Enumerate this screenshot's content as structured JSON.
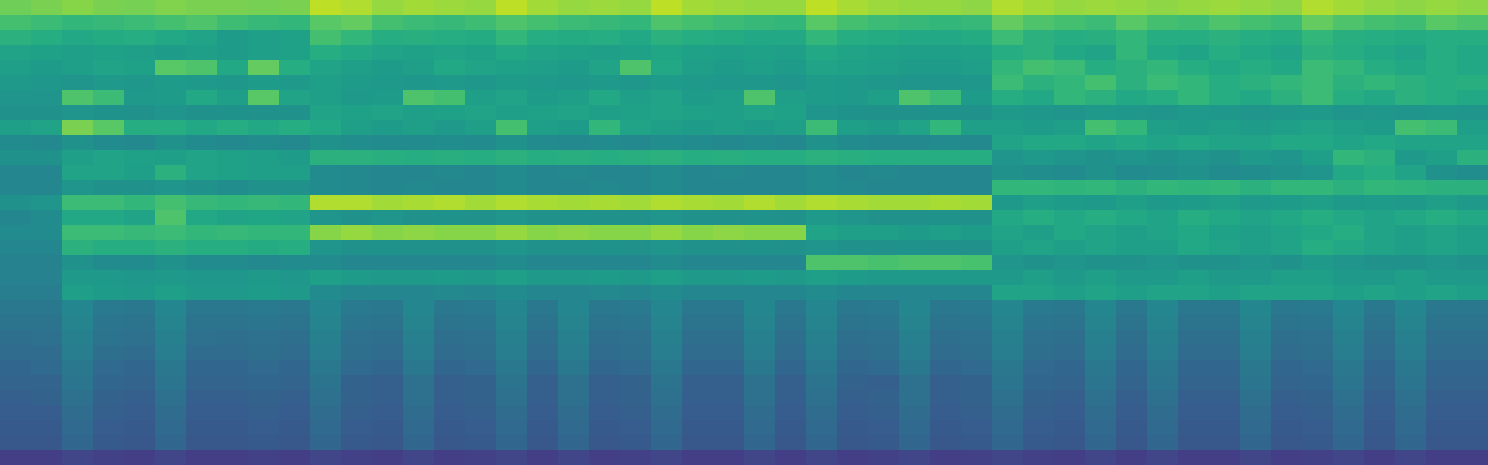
{
  "chart_data": {
    "type": "heatmap",
    "tick_labels": false,
    "zlim": [
      0,
      100
    ],
    "cells": [
      [
        78,
        80,
        82,
        80,
        79,
        81,
        80,
        80,
        79,
        80,
        90,
        88,
        84,
        86,
        85,
        84,
        90,
        86,
        84,
        85,
        84,
        90,
        86,
        85,
        84,
        84,
        90,
        87,
        85,
        84,
        84,
        83,
        88,
        86,
        84,
        85,
        84,
        83,
        84,
        85,
        84,
        83,
        88,
        86,
        84,
        83,
        84,
        83
      ],
      [
        70,
        68,
        66,
        67,
        68,
        70,
        72,
        69,
        67,
        66,
        74,
        76,
        70,
        68,
        67,
        69,
        72,
        70,
        68,
        67,
        66,
        72,
        70,
        68,
        67,
        66,
        74,
        70,
        68,
        67,
        66,
        67,
        76,
        72,
        70,
        68,
        74,
        70,
        69,
        72,
        70,
        68,
        76,
        72,
        70,
        69,
        74,
        72
      ],
      [
        64,
        62,
        60,
        61,
        62,
        60,
        58,
        55,
        56,
        57,
        70,
        66,
        62,
        63,
        62,
        61,
        66,
        62,
        61,
        62,
        60,
        64,
        62,
        61,
        60,
        60,
        66,
        62,
        61,
        60,
        60,
        61,
        68,
        64,
        62,
        63,
        66,
        62,
        62,
        64,
        62,
        61,
        66,
        63,
        62,
        61,
        62,
        62
      ],
      [
        58,
        57,
        56,
        57,
        56,
        55,
        56,
        55,
        56,
        57,
        62,
        60,
        58,
        57,
        58,
        57,
        60,
        58,
        57,
        56,
        57,
        59,
        57,
        56,
        57,
        56,
        60,
        58,
        57,
        56,
        56,
        57,
        62,
        64,
        60,
        58,
        66,
        60,
        58,
        62,
        60,
        58,
        64,
        62,
        60,
        58,
        62,
        60
      ],
      [
        56,
        55,
        56,
        58,
        57,
        74,
        72,
        60,
        76,
        62,
        58,
        56,
        55,
        56,
        60,
        58,
        57,
        56,
        55,
        58,
        72,
        60,
        56,
        55,
        56,
        55,
        58,
        57,
        56,
        55,
        55,
        56,
        66,
        70,
        68,
        62,
        64,
        66,
        62,
        60,
        62,
        60,
        68,
        66,
        62,
        60,
        62,
        60
      ],
      [
        54,
        53,
        52,
        54,
        53,
        55,
        54,
        53,
        55,
        54,
        56,
        55,
        54,
        53,
        54,
        53,
        55,
        54,
        53,
        54,
        53,
        55,
        54,
        53,
        53,
        52,
        55,
        54,
        53,
        52,
        52,
        53,
        68,
        64,
        66,
        70,
        64,
        68,
        66,
        62,
        64,
        66,
        68,
        64,
        66,
        64,
        62,
        63
      ],
      [
        52,
        52,
        72,
        68,
        54,
        55,
        60,
        56,
        74,
        58,
        56,
        54,
        55,
        72,
        70,
        56,
        58,
        55,
        56,
        60,
        56,
        58,
        55,
        56,
        72,
        56,
        55,
        54,
        56,
        72,
        68,
        55,
        62,
        60,
        66,
        64,
        60,
        62,
        66,
        62,
        60,
        64,
        68,
        62,
        60,
        64,
        62,
        60
      ],
      [
        50,
        50,
        52,
        51,
        50,
        52,
        50,
        51,
        50,
        50,
        58,
        57,
        58,
        56,
        57,
        58,
        56,
        57,
        58,
        56,
        57,
        58,
        57,
        56,
        58,
        57,
        52,
        51,
        50,
        50,
        51,
        50,
        54,
        53,
        52,
        54,
        53,
        52,
        54,
        53,
        52,
        53,
        54,
        52,
        53,
        52,
        53,
        52
      ],
      [
        56,
        58,
        80,
        74,
        62,
        62,
        60,
        62,
        60,
        62,
        60,
        56,
        55,
        56,
        54,
        56,
        70,
        56,
        55,
        66,
        58,
        56,
        55,
        56,
        55,
        56,
        68,
        56,
        55,
        58,
        66,
        56,
        56,
        55,
        56,
        70,
        66,
        56,
        55,
        56,
        55,
        56,
        58,
        56,
        55,
        70,
        68,
        56
      ],
      [
        48,
        47,
        50,
        48,
        47,
        50,
        48,
        47,
        48,
        47,
        50,
        49,
        48,
        48,
        49,
        48,
        50,
        48,
        47,
        48,
        47,
        49,
        48,
        47,
        48,
        47,
        50,
        48,
        47,
        47,
        48,
        47,
        58,
        60,
        60,
        58,
        60,
        58,
        60,
        58,
        58,
        60,
        60,
        58,
        60,
        58,
        58,
        58
      ],
      [
        50,
        50,
        56,
        58,
        57,
        56,
        58,
        57,
        56,
        55,
        64,
        64,
        63,
        62,
        63,
        62,
        64,
        62,
        63,
        62,
        63,
        64,
        62,
        63,
        62,
        62,
        64,
        63,
        62,
        62,
        62,
        62,
        52,
        54,
        52,
        50,
        52,
        50,
        52,
        50,
        54,
        52,
        56,
        66,
        64,
        54,
        56,
        64
      ],
      [
        46,
        46,
        58,
        58,
        56,
        64,
        58,
        57,
        56,
        56,
        48,
        47,
        46,
        46,
        47,
        46,
        48,
        46,
        47,
        46,
        46,
        48,
        46,
        47,
        46,
        46,
        48,
        46,
        47,
        46,
        46,
        46,
        50,
        49,
        48,
        50,
        48,
        49,
        50,
        48,
        49,
        50,
        52,
        60,
        62,
        58,
        50,
        49
      ],
      [
        46,
        46,
        52,
        50,
        50,
        52,
        50,
        49,
        50,
        50,
        48,
        47,
        46,
        47,
        46,
        46,
        48,
        46,
        46,
        47,
        46,
        48,
        46,
        46,
        46,
        46,
        48,
        47,
        46,
        46,
        46,
        46,
        66,
        66,
        65,
        66,
        64,
        66,
        65,
        66,
        64,
        66,
        66,
        64,
        66,
        65,
        64,
        64
      ],
      [
        50,
        52,
        68,
        68,
        66,
        70,
        67,
        66,
        67,
        66,
        88,
        88,
        86,
        87,
        88,
        86,
        88,
        87,
        86,
        87,
        86,
        88,
        87,
        86,
        88,
        86,
        88,
        87,
        86,
        86,
        87,
        86,
        54,
        56,
        55,
        54,
        56,
        54,
        55,
        56,
        54,
        55,
        56,
        54,
        55,
        54,
        56,
        54
      ],
      [
        46,
        48,
        60,
        60,
        58,
        72,
        60,
        58,
        59,
        58,
        52,
        50,
        52,
        50,
        51,
        50,
        52,
        50,
        51,
        50,
        50,
        52,
        50,
        50,
        51,
        50,
        54,
        52,
        50,
        50,
        51,
        50,
        60,
        62,
        60,
        62,
        60,
        58,
        62,
        60,
        58,
        60,
        62,
        60,
        58,
        60,
        62,
        60
      ],
      [
        48,
        48,
        68,
        68,
        67,
        68,
        66,
        67,
        66,
        66,
        82,
        84,
        82,
        83,
        82,
        82,
        84,
        82,
        83,
        82,
        82,
        84,
        82,
        83,
        82,
        82,
        58,
        56,
        56,
        55,
        56,
        55,
        58,
        56,
        60,
        58,
        56,
        58,
        60,
        57,
        56,
        58,
        60,
        62,
        58,
        56,
        58,
        56
      ],
      [
        46,
        46,
        64,
        62,
        62,
        64,
        62,
        62,
        61,
        62,
        52,
        50,
        51,
        50,
        50,
        50,
        52,
        50,
        50,
        51,
        50,
        52,
        50,
        50,
        51,
        50,
        52,
        50,
        50,
        51,
        50,
        50,
        56,
        58,
        56,
        58,
        56,
        56,
        60,
        58,
        56,
        58,
        62,
        60,
        58,
        56,
        58,
        56
      ],
      [
        44,
        44,
        50,
        48,
        48,
        50,
        48,
        48,
        47,
        48,
        48,
        46,
        46,
        46,
        46,
        46,
        48,
        46,
        46,
        46,
        46,
        48,
        46,
        46,
        46,
        46,
        72,
        72,
        71,
        72,
        72,
        71,
        52,
        50,
        52,
        50,
        50,
        52,
        50,
        50,
        52,
        50,
        54,
        52,
        50,
        50,
        52,
        50
      ],
      [
        44,
        44,
        54,
        54,
        53,
        54,
        53,
        53,
        54,
        53,
        56,
        55,
        54,
        54,
        55,
        54,
        56,
        54,
        54,
        55,
        54,
        56,
        54,
        54,
        55,
        54,
        56,
        55,
        54,
        54,
        54,
        54,
        54,
        56,
        54,
        56,
        54,
        54,
        56,
        54,
        54,
        56,
        56,
        54,
        54,
        56,
        54,
        54
      ],
      [
        42,
        42,
        56,
        55,
        54,
        56,
        54,
        54,
        55,
        54,
        48,
        46,
        46,
        46,
        47,
        46,
        48,
        46,
        46,
        47,
        46,
        48,
        46,
        46,
        46,
        46,
        48,
        46,
        46,
        46,
        46,
        46,
        58,
        58,
        56,
        58,
        56,
        58,
        58,
        56,
        58,
        58,
        58,
        56,
        58,
        56,
        58,
        56
      ],
      [
        40,
        40,
        46,
        41,
        40,
        46,
        40,
        40,
        41,
        40,
        46,
        41,
        40,
        46,
        40,
        41,
        46,
        40,
        46,
        40,
        41,
        46,
        40,
        40,
        46,
        40,
        46,
        40,
        41,
        46,
        40,
        41,
        46,
        41,
        40,
        46,
        40,
        46,
        40,
        40,
        46,
        40,
        41,
        46,
        40,
        46,
        40,
        40
      ],
      [
        38,
        38,
        45,
        39,
        38,
        45,
        38,
        38,
        39,
        38,
        45,
        39,
        38,
        45,
        38,
        39,
        45,
        38,
        45,
        38,
        39,
        45,
        38,
        38,
        45,
        38,
        45,
        38,
        39,
        45,
        38,
        39,
        45,
        39,
        38,
        45,
        38,
        45,
        38,
        38,
        45,
        38,
        39,
        45,
        38,
        45,
        38,
        38
      ],
      [
        36,
        37,
        43,
        38,
        37,
        43,
        37,
        36,
        37,
        36,
        43,
        37,
        36,
        43,
        36,
        37,
        43,
        36,
        43,
        36,
        37,
        43,
        36,
        36,
        43,
        36,
        43,
        36,
        37,
        43,
        36,
        37,
        43,
        37,
        36,
        43,
        36,
        43,
        36,
        36,
        43,
        36,
        37,
        43,
        36,
        43,
        36,
        36
      ],
      [
        35,
        35,
        42,
        36,
        35,
        42,
        35,
        35,
        36,
        35,
        42,
        36,
        35,
        42,
        35,
        36,
        42,
        35,
        42,
        35,
        36,
        42,
        35,
        35,
        42,
        35,
        42,
        35,
        36,
        42,
        35,
        36,
        42,
        36,
        35,
        42,
        35,
        42,
        35,
        35,
        42,
        35,
        36,
        42,
        35,
        42,
        35,
        35
      ],
      [
        33,
        34,
        40,
        34,
        33,
        40,
        33,
        33,
        34,
        33,
        40,
        34,
        33,
        40,
        33,
        34,
        40,
        33,
        40,
        33,
        34,
        40,
        33,
        33,
        40,
        33,
        40,
        33,
        34,
        40,
        33,
        34,
        40,
        34,
        33,
        40,
        33,
        40,
        33,
        33,
        40,
        33,
        34,
        40,
        33,
        40,
        33,
        33
      ],
      [
        32,
        32,
        39,
        33,
        32,
        39,
        32,
        32,
        33,
        32,
        38,
        31,
        30,
        37,
        30,
        31,
        38,
        30,
        37,
        30,
        31,
        38,
        30,
        30,
        37,
        30,
        38,
        31,
        30,
        37,
        30,
        31,
        39,
        33,
        32,
        39,
        32,
        39,
        32,
        32,
        39,
        32,
        33,
        39,
        32,
        39,
        32,
        32
      ],
      [
        30,
        31,
        37,
        31,
        30,
        37,
        30,
        30,
        31,
        30,
        37,
        31,
        30,
        37,
        30,
        31,
        37,
        30,
        37,
        30,
        31,
        37,
        30,
        30,
        37,
        30,
        37,
        30,
        31,
        37,
        30,
        31,
        37,
        31,
        30,
        37,
        30,
        37,
        30,
        30,
        37,
        30,
        31,
        37,
        30,
        37,
        30,
        30
      ],
      [
        29,
        29,
        35,
        30,
        29,
        35,
        29,
        29,
        30,
        29,
        35,
        30,
        29,
        35,
        29,
        30,
        35,
        29,
        35,
        29,
        30,
        35,
        29,
        29,
        35,
        29,
        35,
        29,
        30,
        35,
        29,
        30,
        35,
        30,
        29,
        35,
        29,
        35,
        29,
        29,
        35,
        29,
        30,
        35,
        29,
        35,
        29,
        29
      ],
      [
        28,
        28,
        34,
        29,
        28,
        34,
        28,
        28,
        29,
        28,
        34,
        29,
        28,
        34,
        28,
        29,
        34,
        28,
        34,
        28,
        29,
        34,
        28,
        28,
        34,
        28,
        34,
        28,
        29,
        34,
        28,
        29,
        34,
        29,
        28,
        34,
        28,
        34,
        28,
        28,
        34,
        28,
        29,
        34,
        28,
        34,
        28,
        28
      ],
      [
        27,
        27,
        33,
        28,
        27,
        33,
        27,
        27,
        28,
        27,
        33,
        28,
        27,
        33,
        27,
        28,
        33,
        27,
        33,
        27,
        28,
        33,
        27,
        27,
        33,
        27,
        33,
        27,
        28,
        33,
        27,
        28,
        33,
        28,
        27,
        33,
        27,
        33,
        27,
        27,
        33,
        27,
        28,
        33,
        27,
        33,
        27,
        27
      ],
      [
        18,
        18,
        21,
        19,
        18,
        21,
        18,
        18,
        19,
        18,
        21,
        19,
        18,
        21,
        18,
        19,
        21,
        18,
        21,
        18,
        19,
        21,
        18,
        18,
        21,
        18,
        21,
        18,
        19,
        21,
        18,
        19,
        21,
        19,
        18,
        21,
        18,
        21,
        18,
        18,
        21,
        18,
        19,
        21,
        18,
        21,
        18,
        18
      ]
    ]
  }
}
